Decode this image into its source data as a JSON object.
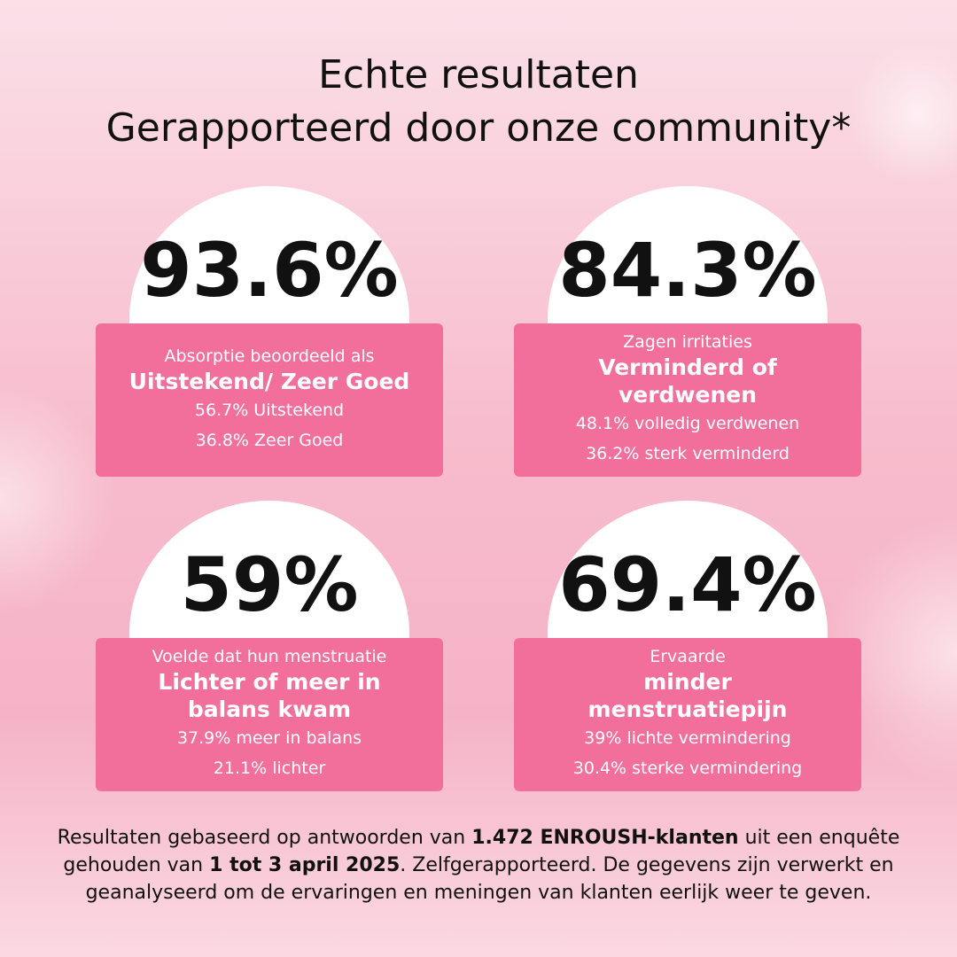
{
  "header": {
    "title_lines": [
      "Echte resultaten",
      "Gerapporteerd door onze community*"
    ]
  },
  "stats": [
    {
      "figure": "93.6%",
      "intro": "Absorptie beoordeeld als",
      "highlight": "Uitstekend/ Zeer Goed",
      "details": [
        "56.7% Uitstekend",
        "36.8% Zeer Goed"
      ]
    },
    {
      "figure": "84.3%",
      "intro": "Zagen irritaties",
      "highlight": "Verminderd of verdwenen",
      "details": [
        "48.1% volledig verdwenen",
        "36.2% sterk verminderd"
      ]
    },
    {
      "figure": "59%",
      "intro": "Voelde dat hun menstruatie",
      "highlight": "Lichter of meer in balans kwam",
      "details": [
        "37.9% meer in balans",
        "21.1% lichter"
      ]
    },
    {
      "figure": "69.4%",
      "intro": "Ervaarde",
      "highlight": "minder menstruatiepijn",
      "details": [
        "39% lichte vermindering",
        "30.4% sterke vermindering"
      ]
    }
  ],
  "footnote": [
    {
      "text": "Resultaten gebaseerd op antwoorden van ",
      "bold": false
    },
    {
      "text": "1.472 ENROUSH-klanten",
      "bold": true
    },
    {
      "text": " uit een enquête gehouden van ",
      "bold": false
    },
    {
      "text": "1 tot 3 april 2025",
      "bold": true
    },
    {
      "text": ". Zelfgerapporteerd. De gegevens zijn verwerkt en geanalyseerd om de ervaringen en meningen van klanten eerlijk weer te geven.",
      "bold": false
    }
  ]
}
